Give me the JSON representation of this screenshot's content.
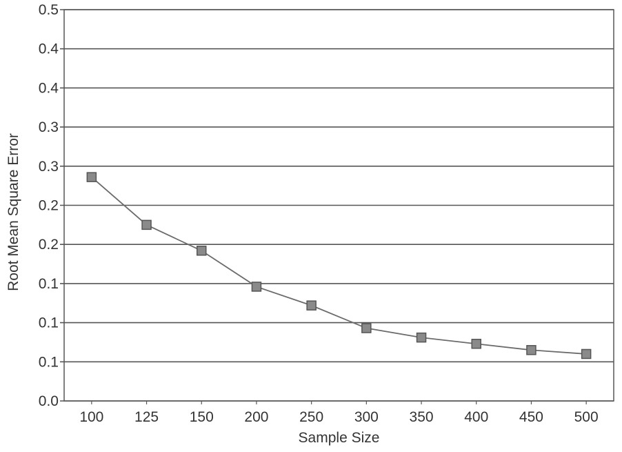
{
  "chart_data": {
    "type": "line",
    "categories": [
      "100",
      "125",
      "150",
      "200",
      "250",
      "300",
      "350",
      "400",
      "450",
      "500"
    ],
    "series": [
      {
        "values": [
          0.286,
          0.225,
          0.192,
          0.146,
          0.122,
          0.093,
          0.081,
          0.073,
          0.065,
          0.06
        ]
      }
    ],
    "xlabel": "Sample Size",
    "ylabel": "Root Mean Square Error",
    "ylim": [
      0,
      0.5
    ],
    "y_tick_values": [
      0.0,
      0.05,
      0.1,
      0.15,
      0.2,
      0.25,
      0.3,
      0.35,
      0.4,
      0.45,
      0.5
    ],
    "y_tick_labels": [
      "0.0",
      "0.1",
      "0.1",
      "0.1",
      "0.2",
      "0.2",
      "0.3",
      "0.3",
      "0.4",
      "0.4",
      "0.5"
    ],
    "grid": true,
    "legend": "none",
    "marker": "square",
    "colors": {
      "line": "#6b6b6b",
      "marker_fill": "#8a8a8a",
      "marker_stroke": "#555555",
      "grid": "#555555",
      "text": "#333333"
    }
  }
}
